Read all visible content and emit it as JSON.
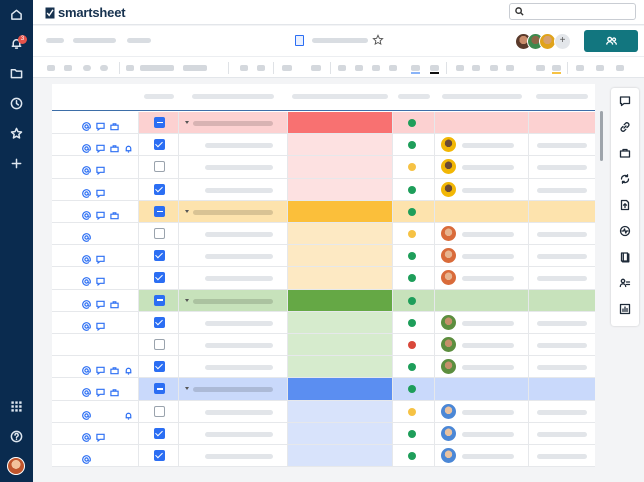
{
  "app": {
    "brand": "smartsheet",
    "notification_count": "3"
  },
  "nav": {
    "icons": [
      "home-icon",
      "bell-icon",
      "folder-icon",
      "clock-icon",
      "star-icon",
      "plus-icon"
    ],
    "bottom_icons": [
      "apps-grid-icon",
      "help-icon"
    ]
  },
  "right_panel": {
    "icons": [
      "comment-icon",
      "link-icon",
      "briefcase-icon",
      "sync-icon",
      "file-upload-icon",
      "activity-icon",
      "book-icon",
      "people-icon",
      "report-icon"
    ]
  },
  "colors": {
    "nav_bg": "#0a2b4f",
    "accent": "#2b6ef3",
    "share_button": "#12767f",
    "status_green": "#1e9e5a",
    "status_yellow": "#f6c244",
    "status_red": "#d9483b"
  },
  "sections": [
    {
      "name": "red",
      "row_bg": "#fde1e1",
      "parent_bg": "#fcd1d1",
      "color_cell": "#f87171"
    },
    {
      "name": "orange",
      "row_bg": "#fde9c3",
      "parent_bg": "#fde3ad",
      "color_cell": "#fbbf3a"
    },
    {
      "name": "green",
      "row_bg": "#d6ebcd",
      "parent_bg": "#c7e2bb",
      "color_cell": "#65a845"
    },
    {
      "name": "blue",
      "row_bg": "#d8e3fb",
      "parent_bg": "#c9d9fb",
      "color_cell": "#5b8ef1"
    }
  ],
  "rows": [
    {
      "section": 0,
      "parent": true,
      "check": "indeterminate",
      "icons": [
        "at",
        "comment",
        "briefcase"
      ],
      "status": "green"
    },
    {
      "section": 0,
      "parent": false,
      "check": "checked",
      "icons": [
        "at",
        "comment",
        "briefcase",
        "bell"
      ],
      "status": "green",
      "assignee": "yellow"
    },
    {
      "section": 0,
      "parent": false,
      "check": "unchecked",
      "icons": [
        "at",
        "comment"
      ],
      "status": "yellow",
      "assignee": "yellow"
    },
    {
      "section": 0,
      "parent": false,
      "check": "checked",
      "icons": [
        "at",
        "comment"
      ],
      "status": "green",
      "assignee": "yellow"
    },
    {
      "section": 1,
      "parent": true,
      "check": "indeterminate",
      "icons": [
        "at",
        "comment",
        "briefcase"
      ],
      "status": "green"
    },
    {
      "section": 1,
      "parent": false,
      "check": "unchecked",
      "icons": [
        "at"
      ],
      "status": "yellow",
      "assignee": "orange"
    },
    {
      "section": 1,
      "parent": false,
      "check": "checked",
      "icons": [
        "at",
        "comment"
      ],
      "status": "green",
      "assignee": "orange"
    },
    {
      "section": 1,
      "parent": false,
      "check": "checked",
      "icons": [
        "at",
        "comment"
      ],
      "status": "green",
      "assignee": "orange"
    },
    {
      "section": 2,
      "parent": true,
      "check": "indeterminate",
      "icons": [
        "at",
        "comment",
        "briefcase"
      ],
      "status": "green"
    },
    {
      "section": 2,
      "parent": false,
      "check": "checked",
      "icons": [
        "at",
        "comment"
      ],
      "status": "green",
      "assignee": "green"
    },
    {
      "section": 2,
      "parent": false,
      "check": "unchecked",
      "icons": [],
      "status": "red",
      "assignee": "green"
    },
    {
      "section": 2,
      "parent": false,
      "check": "checked",
      "icons": [
        "at",
        "comment",
        "briefcase",
        "bell"
      ],
      "status": "green",
      "assignee": "green"
    },
    {
      "section": 3,
      "parent": true,
      "check": "indeterminate",
      "icons": [
        "at",
        "comment",
        "briefcase"
      ],
      "status": "green"
    },
    {
      "section": 3,
      "parent": false,
      "check": "unchecked",
      "icons": [
        "at",
        "bell"
      ],
      "status": "yellow",
      "assignee": "blue"
    },
    {
      "section": 3,
      "parent": false,
      "check": "checked",
      "icons": [
        "at",
        "comment"
      ],
      "status": "green",
      "assignee": "blue"
    },
    {
      "section": 3,
      "parent": false,
      "check": "checked",
      "icons": [
        "at"
      ],
      "status": "green",
      "assignee": "blue"
    }
  ]
}
